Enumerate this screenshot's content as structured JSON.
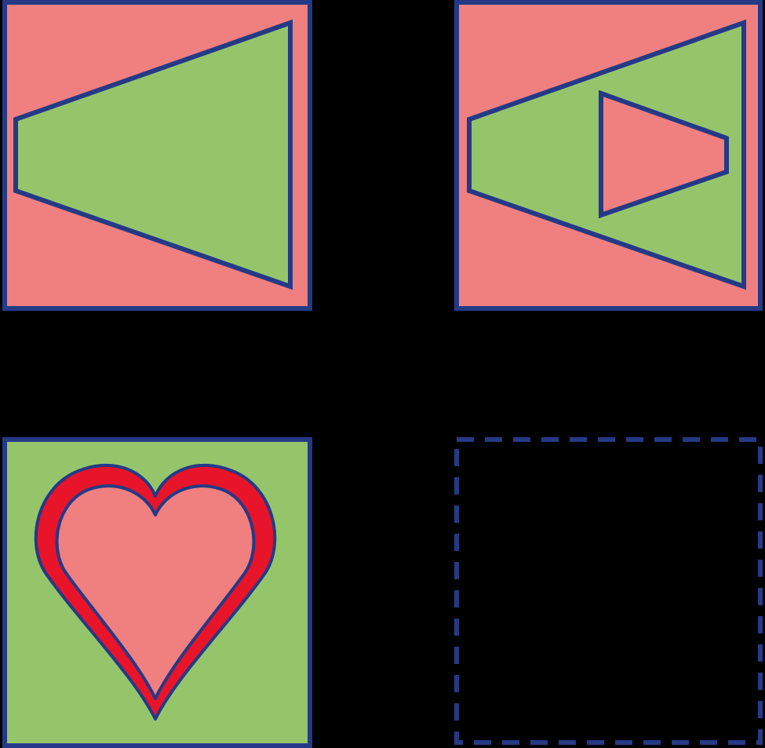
{
  "puzzle": {
    "background_color": "#000000",
    "outline_color": "#243a86",
    "panels": [
      {
        "id": "top-left",
        "fill": "#f08080",
        "shape": "trapezoid-pointing-left",
        "shape_fill": "#95c56b"
      },
      {
        "id": "top-right",
        "fill": "#f08080",
        "shape": "trapezoid-pointing-left",
        "shape_fill": "#95c56b",
        "inner_shape": "small-trapezoid-pointing-right",
        "inner_fill": "#f08080"
      },
      {
        "id": "bottom-left",
        "fill": "#95c56b",
        "shape": "heart",
        "shape_fill": "#f08080",
        "shape_rim": "#e8142a"
      },
      {
        "id": "bottom-right",
        "fill": "#000000",
        "shape": "empty-answer-slot",
        "border": "dashed"
      }
    ]
  }
}
